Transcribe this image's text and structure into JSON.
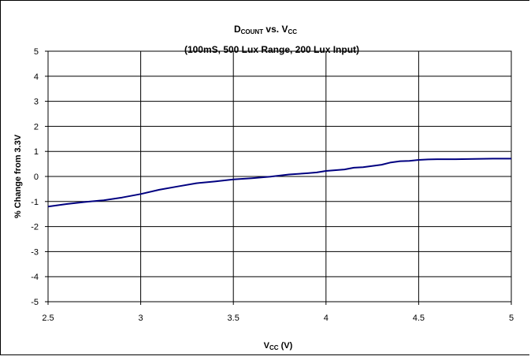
{
  "chart_data": {
    "type": "line",
    "title": {
      "main": "D",
      "main_sub": "COUNT",
      "main_rest": " vs. V",
      "main_sub2": "CC",
      "line2": "(100mS, 500 Lux Range, 200 Lux Input)"
    },
    "xlabel": {
      "main": "V",
      "sub": "CC",
      "rest": " (V)"
    },
    "ylabel": "% Change from 3.3V",
    "xlim": [
      2.5,
      5
    ],
    "ylim": [
      -5,
      5
    ],
    "x_ticks": [
      "2.5",
      "3",
      "3.5",
      "4",
      "4.5",
      "5"
    ],
    "y_ticks": [
      "5",
      "4",
      "3",
      "2",
      "1",
      "0",
      "-1",
      "-2",
      "-3",
      "-4",
      "-5"
    ],
    "grid": true,
    "series": [
      {
        "color": "#000080",
        "x": [
          2.5,
          2.6,
          2.7,
          2.8,
          2.9,
          3.0,
          3.1,
          3.2,
          3.3,
          3.4,
          3.5,
          3.6,
          3.7,
          3.8,
          3.9,
          3.95,
          4.0,
          4.1,
          4.15,
          4.2,
          4.3,
          4.35,
          4.4,
          4.45,
          4.5,
          4.55,
          4.6,
          4.7,
          4.8,
          4.9,
          5.0
        ],
        "y": [
          -1.2,
          -1.1,
          -1.02,
          -0.95,
          -0.84,
          -0.7,
          -0.53,
          -0.4,
          -0.27,
          -0.2,
          -0.12,
          -0.07,
          -0.01,
          0.08,
          0.13,
          0.16,
          0.22,
          0.28,
          0.35,
          0.37,
          0.47,
          0.56,
          0.61,
          0.62,
          0.66,
          0.68,
          0.69,
          0.69,
          0.7,
          0.71,
          0.71
        ]
      }
    ]
  }
}
